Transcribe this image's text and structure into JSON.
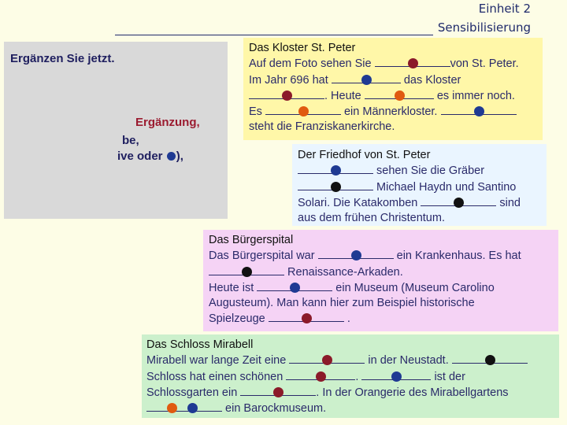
{
  "header": {
    "unit": "Einheit 2",
    "topic": "Sensibilisierung"
  },
  "instructions": {
    "title": "Ergänzen Sie jetzt.",
    "line1": "Ergänzung,",
    "line2": "be,",
    "line3_pre": "ive oder",
    "line3_post": "),"
  },
  "kloster": {
    "title": "Das Kloster St. Peter",
    "l1_a": "Auf dem Foto sehen Sie",
    "l1_b": "von St. Peter.",
    "l2_a": "Im Jahr 696 hat",
    "l2_b": "das Kloster",
    "l3_b": ". Heute",
    "l3_c": "es immer noch.",
    "l4_a": "Es",
    "l4_b": "ein Männerkloster.",
    "l5_a": "steht die Franziskanerkirche."
  },
  "friedhof": {
    "title": "Der Friedhof von St. Peter",
    "l1_b": "sehen Sie die Gräber",
    "l2_b": "Michael Haydn und Santino",
    "l3_a": "Solari. Die Katakomben",
    "l3_b": "sind",
    "l4_a": "aus dem frühen Christentum."
  },
  "spital": {
    "title": "Das Bürgerspital",
    "l1_a": "Das Bürgerspital war",
    "l1_b": "ein Krankenhaus. Es hat",
    "l2_b": "Renaissance-Arkaden.",
    "l3_a": "Heute ist",
    "l3_b": "ein Museum (Museum Carolino",
    "l4_a": "Augusteum). Man kann hier zum Beispiel historische",
    "l5_a": "Spielzeuge",
    "l5_b": "."
  },
  "mirabell": {
    "title": "Das Schloss Mirabell",
    "l1_a": "Mirabell war lange Zeit eine",
    "l1_b": "in der Neustadt.",
    "l2_a": "Schloss hat einen schönen",
    "l2_b": ".",
    "l2_c": "ist der",
    "l3_a": "Schlossgarten ein",
    "l3_b": ". In der Orangerie des Mirabellgartens",
    "l4_b": "ein Barockmuseum."
  },
  "marker_colors": {
    "red": "#8b1a2a",
    "orange": "#e05a10",
    "blue": "#1f3a93",
    "black": "#111111"
  }
}
